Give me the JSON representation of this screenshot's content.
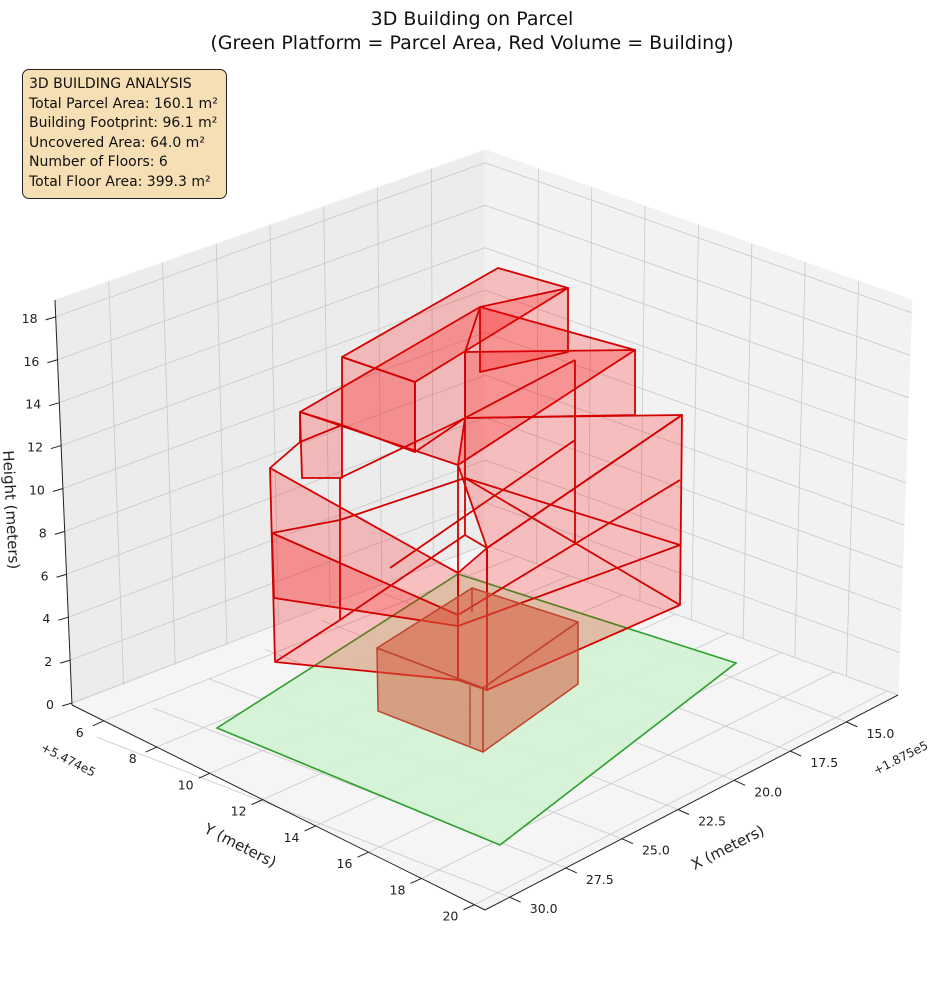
{
  "title_line1": "3D Building on Parcel",
  "title_line2": "(Green Platform = Parcel Area, Red Volume = Building)",
  "info_box": {
    "heading": "3D BUILDING ANALYSIS",
    "lines": [
      "Total Parcel Area: 160.1 m²",
      "Building Footprint: 96.1 m²",
      "Uncovered Area: 64.0 m²",
      "Number of Floors: 6",
      "Total Floor Area: 399.3 m²"
    ]
  },
  "chart_data": {
    "type": "3d-polygons",
    "axes": {
      "x": {
        "label": "X (meters)",
        "offset_label": "+1.875e5",
        "ticks": [
          "15.0",
          "17.5",
          "20.0",
          "22.5",
          "25.0",
          "27.5",
          "30.0"
        ]
      },
      "y": {
        "label": "Y (meters)",
        "offset_label": "+5.474e5",
        "ticks": [
          "6",
          "8",
          "10",
          "12",
          "14",
          "16",
          "18",
          "20"
        ]
      },
      "z": {
        "label": "Height (meters)",
        "ticks": [
          "0",
          "2",
          "4",
          "6",
          "8",
          "10",
          "12",
          "14",
          "16",
          "18"
        ]
      }
    },
    "colors": {
      "parcel_fill": "#d4f3d4",
      "parcel_edge": "#2ca02c",
      "building_fill": "#ff0000",
      "building_edge": "#d40000",
      "pane": "#f2f2f2",
      "grid": "#c8c8c8"
    },
    "series": [
      {
        "name": "Green Platform = Parcel Area"
      },
      {
        "name": "Red Volume = Building"
      }
    ]
  }
}
